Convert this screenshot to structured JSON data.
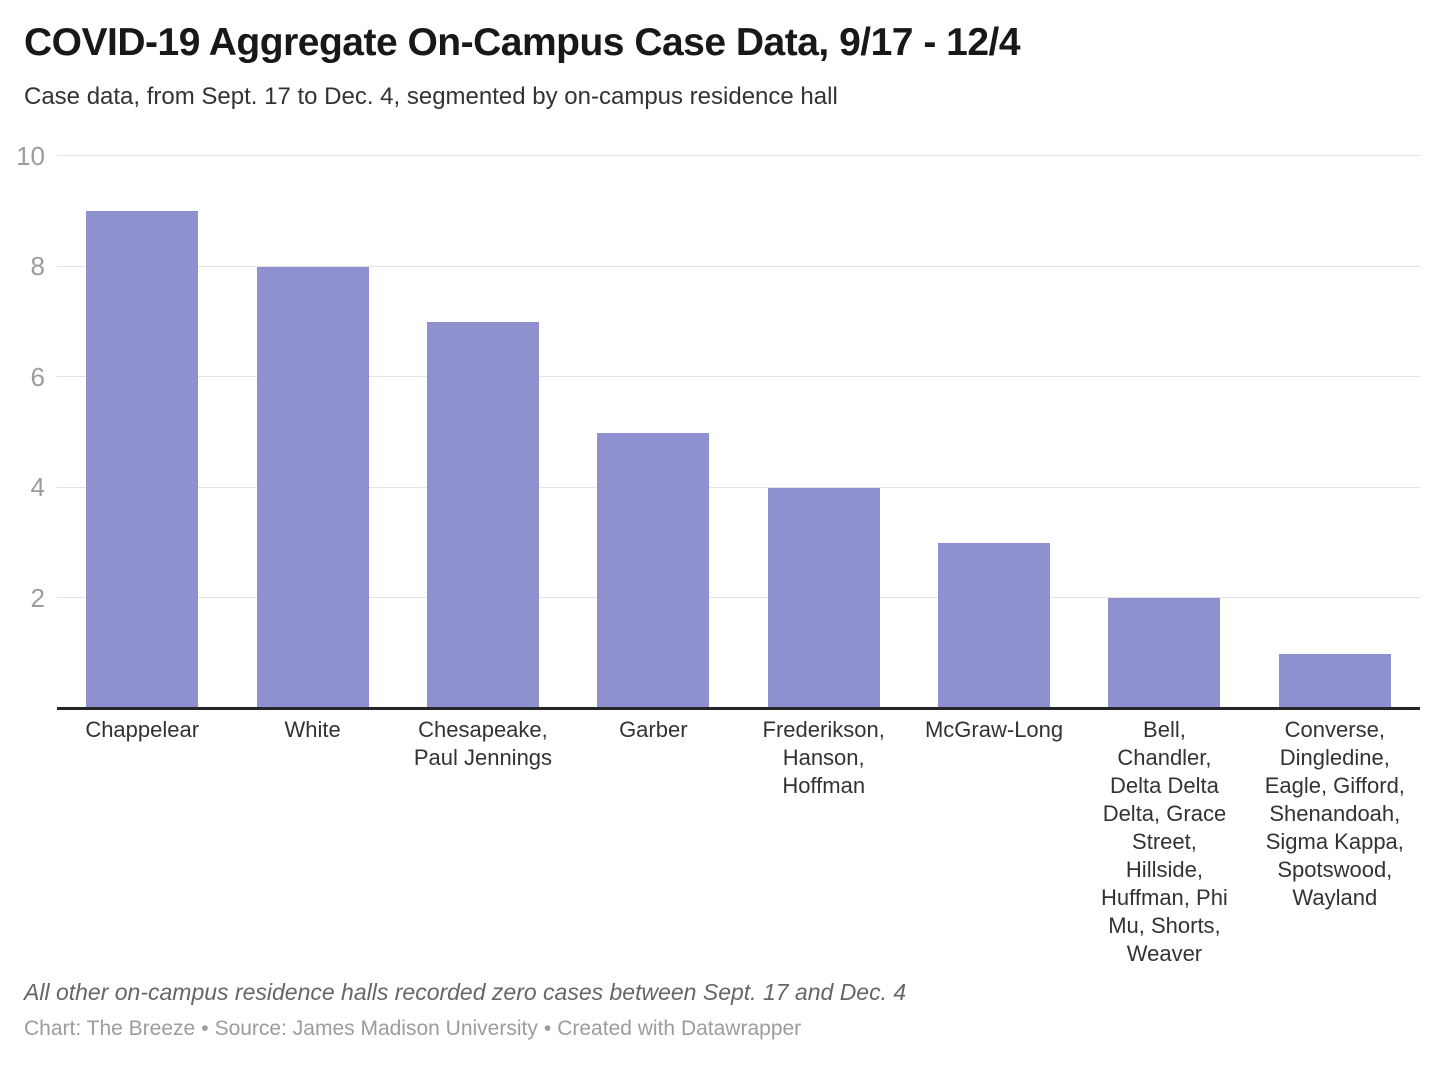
{
  "header": {
    "title": "COVID-19 Aggregate On-Campus Case Data, 9/17 - 12/4",
    "subtitle": "Case data, from Sept. 17 to Dec. 4, segmented by on-campus residence hall"
  },
  "chart_data": {
    "type": "bar",
    "title": "COVID-19 Aggregate On-Campus Case Data, 9/17 - 12/4",
    "subtitle": "Case data, from Sept. 17 to Dec. 4, segmented by on-campus residence hall",
    "categories": [
      "Chappelear",
      "White",
      "Chesapeake, Paul Jennings",
      "Garber",
      "Frederikson, Hanson, Hoffman",
      "McGraw-Long",
      "Bell, Chandler, Delta Delta Delta, Grace Street, Hillside, Huffman, Phi Mu, Shorts, Weaver",
      "Converse, Dingledine, Eagle, Gifford, Shenandoah, Sigma Kappa, Spotswood, Wayland"
    ],
    "values": [
      9,
      8,
      7,
      5,
      4,
      3,
      2,
      1
    ],
    "xlabel": "",
    "ylabel": "",
    "ylim": [
      0,
      10
    ],
    "yticks": [
      2,
      4,
      6,
      8,
      10
    ],
    "grid": true,
    "legend": "none",
    "bar_color": "#8e90d0"
  },
  "colors": {
    "bar": "#8e90d0",
    "gridline": "#e2e2e2",
    "axis_line": "#26262a",
    "tick_label": "#9c9c9c"
  },
  "footer": {
    "note": "All other on-campus residence halls recorded zero cases between Sept. 17 and Dec. 4",
    "chart_credit": "Chart: The Breeze",
    "source_credit": "Source: James Madison University",
    "created_with": "Created with Datawrapper",
    "separator": "•"
  }
}
